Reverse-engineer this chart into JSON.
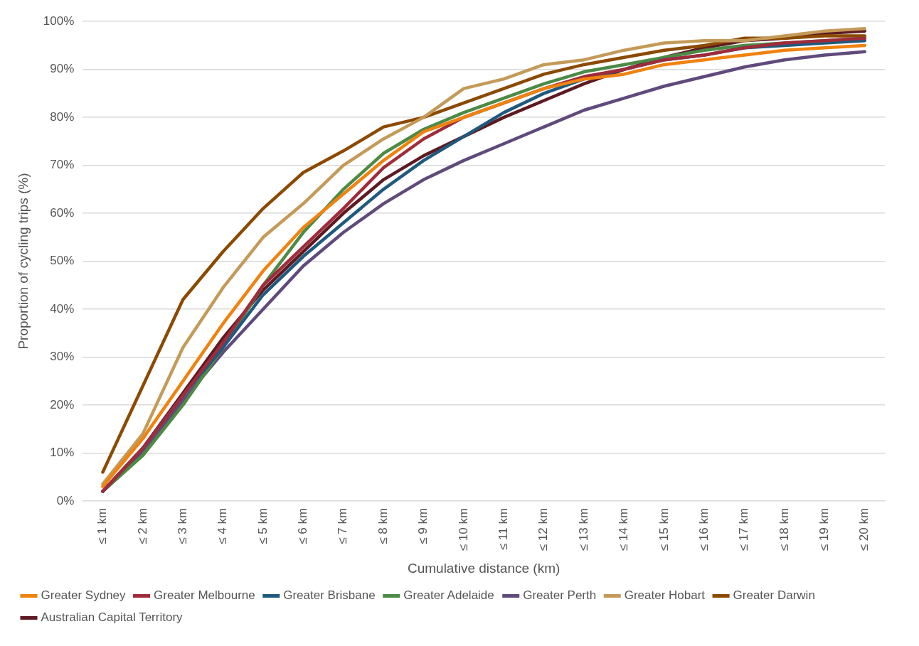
{
  "chart_data": {
    "type": "line",
    "xlabel": "Cumulative distance (km)",
    "ylabel": "Proportion of cycling trips (%)",
    "categories": [
      "≤ 1 km",
      "≤ 2 km",
      "≤ 3 km",
      "≤ 4 km",
      "≤ 5 km",
      "≤ 6 km",
      "≤ 7 km",
      "≤ 8 km",
      "≤ 9 km",
      "≤ 10 km",
      "≤ 11 km",
      "≤ 12 km",
      "≤ 13 km",
      "≤ 14 km",
      "≤ 15 km",
      "≤ 16 km",
      "≤ 17 km",
      "≤ 18 km",
      "≤ 19 km",
      "≤ 20 km"
    ],
    "series": [
      {
        "name": "Greater Sydney",
        "color": "#f0820f",
        "values": [
          3,
          13,
          25,
          37,
          48,
          57,
          64,
          71,
          77,
          80,
          83,
          86,
          88,
          89,
          91,
          92,
          93,
          94,
          94.5,
          95
        ]
      },
      {
        "name": "Greater Melbourne",
        "color": "#a02b3a",
        "values": [
          2,
          11,
          22,
          33,
          45,
          53,
          61,
          69.5,
          75.5,
          80,
          83,
          86,
          88.5,
          90,
          92,
          93,
          94.5,
          95.5,
          96,
          96.5
        ]
      },
      {
        "name": "Greater Brisbane",
        "color": "#1f5a7e",
        "values": [
          2,
          11,
          22,
          32,
          43,
          51,
          58,
          65,
          71,
          76,
          81,
          85,
          88,
          90,
          92,
          93,
          94.5,
          95,
          95.5,
          96
        ]
      },
      {
        "name": "Greater Adelaide",
        "color": "#4c8a45",
        "values": [
          2,
          9.5,
          20,
          32,
          45,
          56,
          65,
          72.5,
          77.5,
          81,
          84,
          87,
          89.5,
          91,
          92.5,
          94,
          95,
          95.5,
          96,
          96.5
        ]
      },
      {
        "name": "Greater Perth",
        "color": "#604a7b",
        "values": [
          2,
          10,
          21,
          31,
          40,
          49,
          56,
          62,
          67,
          71,
          74.5,
          78,
          81.5,
          84,
          86.5,
          88.5,
          90.5,
          92,
          93,
          93.7
        ]
      },
      {
        "name": "Greater Hobart",
        "color": "#c49a58",
        "values": [
          3.5,
          14,
          32,
          44.5,
          55,
          62,
          70,
          75.5,
          80,
          86,
          88,
          91,
          92,
          94,
          95.5,
          96,
          96,
          97,
          98,
          98.5
        ]
      },
      {
        "name": "Greater Darwin",
        "color": "#8b4a00",
        "values": [
          6,
          24,
          42,
          52,
          61,
          68.5,
          73,
          78,
          80,
          83,
          86,
          89,
          91,
          92.5,
          94,
          95,
          96.5,
          96.5,
          97,
          97
        ]
      },
      {
        "name": "Australian Capital Territory",
        "color": "#5e1a22",
        "values": [
          2,
          11,
          22.5,
          34,
          44,
          52,
          60,
          67,
          72,
          76,
          80,
          83.5,
          87,
          90,
          92.5,
          94.5,
          96,
          96.5,
          97.5,
          98
        ]
      }
    ],
    "ylim": [
      0,
      100
    ],
    "yticks": [
      {
        "value": 0,
        "label": "0%"
      },
      {
        "value": 10,
        "label": "10%"
      },
      {
        "value": 20,
        "label": "20%"
      },
      {
        "value": 30,
        "label": "30%"
      },
      {
        "value": 40,
        "label": "40%"
      },
      {
        "value": 50,
        "label": "50%"
      },
      {
        "value": 60,
        "label": "60%"
      },
      {
        "value": 70,
        "label": "70%"
      },
      {
        "value": 80,
        "label": "80%"
      },
      {
        "value": 90,
        "label": "90%"
      },
      {
        "value": 100,
        "label": "100%"
      }
    ],
    "grid": "y",
    "legend": "bottom",
    "marker": "none"
  }
}
